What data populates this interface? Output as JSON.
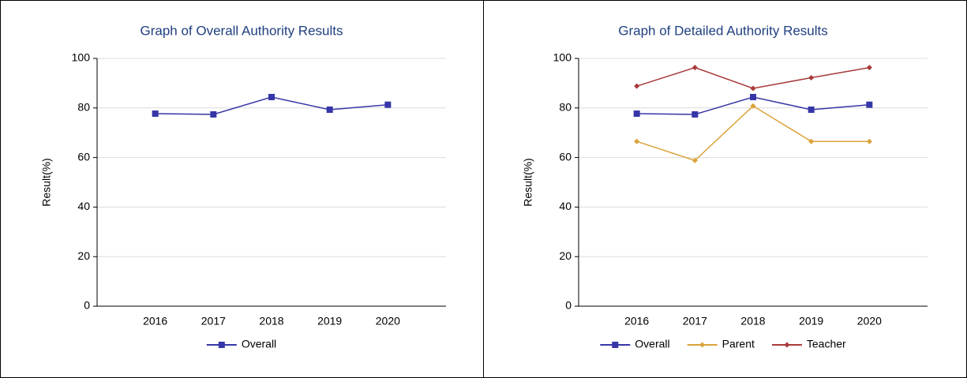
{
  "chart_data": [
    {
      "type": "line",
      "title": "Graph of Overall Authority Results",
      "y_label": "Result(%)",
      "categories": [
        "2016",
        "2017",
        "2018",
        "2019",
        "2020"
      ],
      "series": [
        {
          "name": "Overall",
          "color": "#3636a8",
          "marker": "square",
          "values": [
            77.7,
            77.4,
            84.4,
            79.3,
            81.3
          ]
        }
      ],
      "ylim": [
        0,
        100
      ],
      "yticks": [
        0,
        20,
        40,
        60,
        80,
        100
      ],
      "grid": true,
      "legend": "bottom"
    },
    {
      "type": "line",
      "title": "Graph of Detailed Authority Results",
      "y_label": "Result(%)",
      "categories": [
        "2016",
        "2017",
        "2018",
        "2019",
        "2020"
      ],
      "series": [
        {
          "name": "Overall",
          "color": "#3636a8",
          "marker": "square",
          "values": [
            77.7,
            77.4,
            84.4,
            79.3,
            81.3
          ]
        },
        {
          "name": "Parent",
          "color": "#dba33a",
          "marker": "diamond",
          "values": [
            66.5,
            58.8,
            80.8,
            66.5,
            66.5
          ]
        },
        {
          "name": "Teacher",
          "color": "#a83a3a",
          "marker": "diamond",
          "values": [
            88.8,
            96.3,
            87.9,
            92.2,
            96.3
          ]
        }
      ],
      "ylim": [
        0,
        100
      ],
      "yticks": [
        0,
        20,
        40,
        60,
        80,
        100
      ],
      "grid": true,
      "legend": "bottom"
    }
  ]
}
